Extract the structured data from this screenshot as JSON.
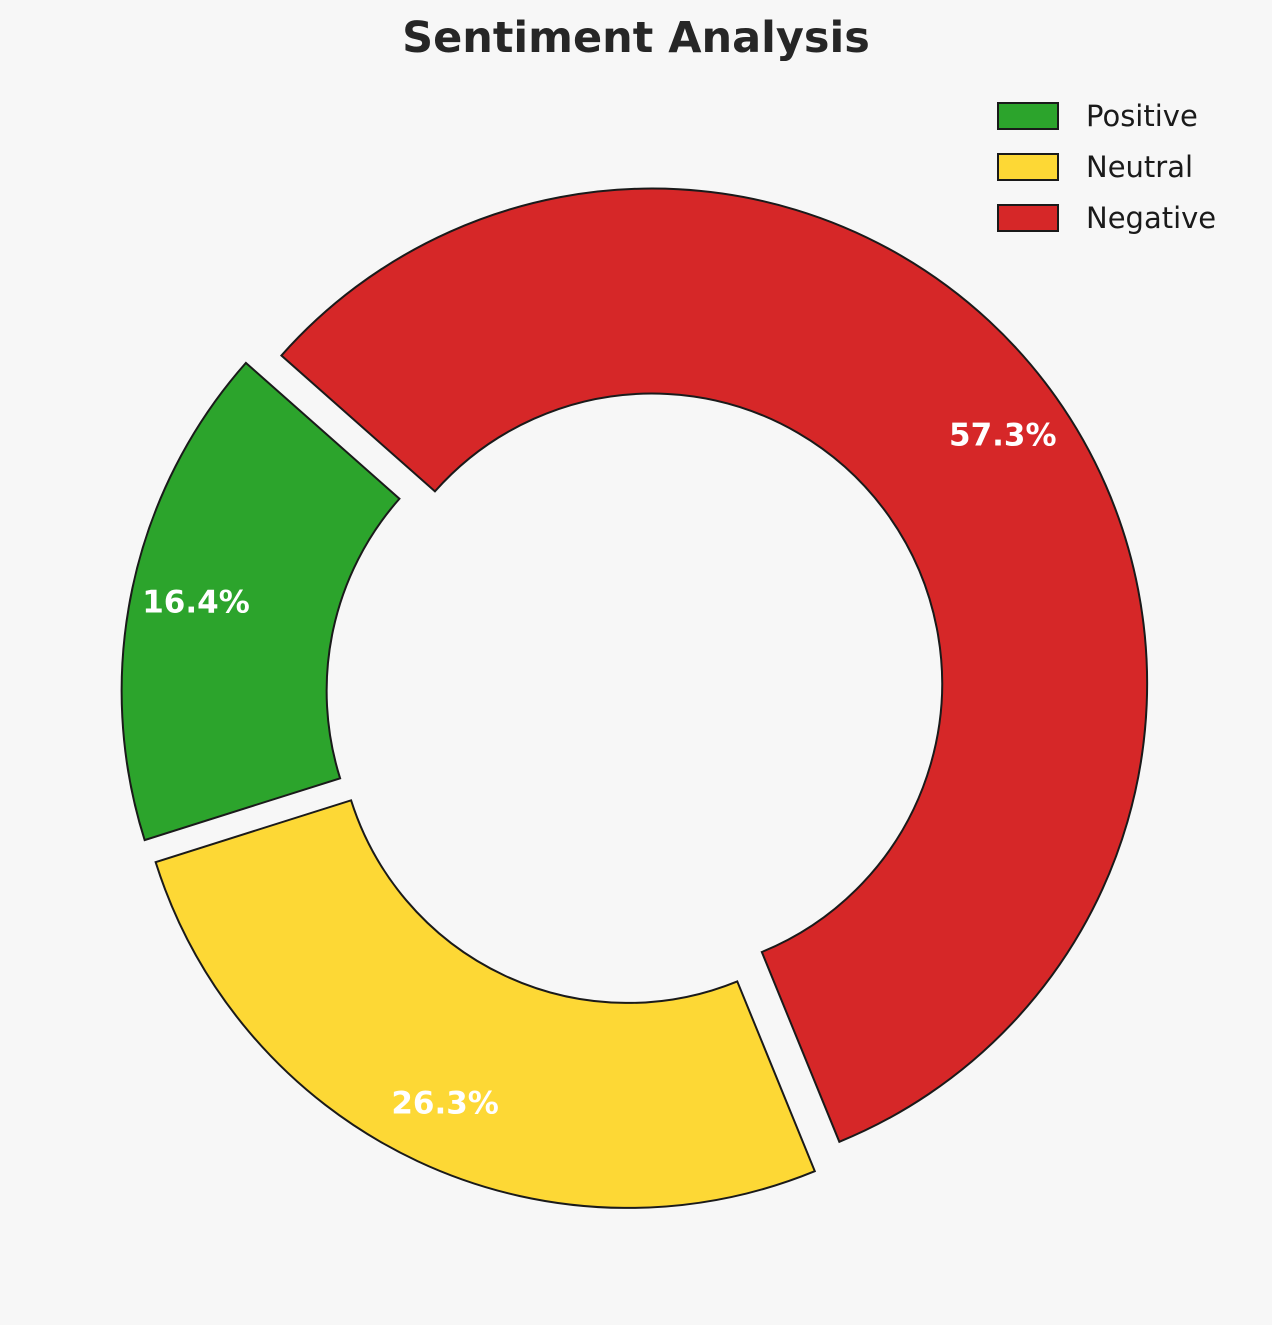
{
  "page": {
    "background_color": "#f7f7f7"
  },
  "chart_data": {
    "type": "pie",
    "subtype": "donut",
    "title": "Sentiment Analysis",
    "categories": [
      "Positive",
      "Neutral",
      "Negative"
    ],
    "values": [
      16.4,
      26.3,
      57.3
    ],
    "pct_labels": [
      "16.4%",
      "26.3%",
      "57.3%"
    ],
    "colors": [
      "#2ca42c",
      "#fdd835",
      "#d62728"
    ],
    "edge_color": "#1a1a1a",
    "label_color": "#ffffff",
    "title_color": "#262626",
    "legend_text_color": "#1a1a1a",
    "legend_position": "upper right",
    "start_angle_deg": 138.5,
    "counterclockwise": true,
    "explode_fraction": 0.04,
    "donut_hole": true
  }
}
